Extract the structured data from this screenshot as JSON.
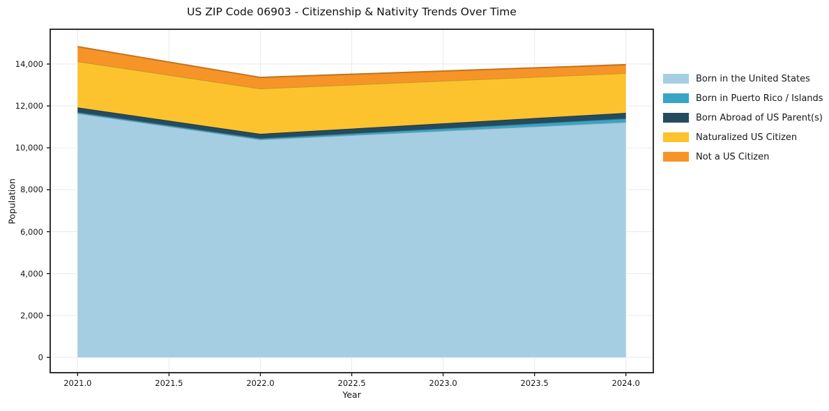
{
  "chart_data": {
    "type": "area",
    "stacked": true,
    "title": "US ZIP Code 06903 - Citizenship & Nativity Trends Over Time",
    "xlabel": "Year",
    "ylabel": "Population",
    "x": [
      2021,
      2022,
      2024
    ],
    "series": [
      {
        "name": "Born in the United States",
        "color": "#a6cee3",
        "values": [
          11650,
          10400,
          11230
        ]
      },
      {
        "name": "Born in Puerto Rico / Islands",
        "color": "#38a5c5",
        "values": [
          50,
          50,
          170
        ]
      },
      {
        "name": "Born Abroad of US Parent(s)",
        "color": "#254b5e",
        "values": [
          230,
          220,
          270
        ]
      },
      {
        "name": "Naturalized US Citizen",
        "color": "#fcc32f",
        "values": [
          2200,
          2160,
          1900
        ]
      },
      {
        "name": "Not a US Citizen",
        "color": "#f79428",
        "values": [
          700,
          530,
          400
        ]
      }
    ],
    "stack_totals": [
      14830,
      13360,
      13970
    ],
    "xlim": [
      2020.85,
      2024.15
    ],
    "ylim": [
      -730,
      15660
    ],
    "grid": true,
    "grid_color": "#e9e9e9",
    "spine_color": "#1a1a1a",
    "legend_position": "right",
    "axes": {
      "x_ticks": [
        {
          "label": "2021.0",
          "value": 2021.0
        },
        {
          "label": "2021.5",
          "value": 2021.5
        },
        {
          "label": "2022.0",
          "value": 2022.0
        },
        {
          "label": "2022.5",
          "value": 2022.5
        },
        {
          "label": "2023.0",
          "value": 2023.0
        },
        {
          "label": "2023.5",
          "value": 2023.5
        },
        {
          "label": "2024.0",
          "value": 2024.0
        }
      ],
      "y_ticks": [
        {
          "label": "0",
          "value": 0
        },
        {
          "label": "2,000",
          "value": 2000
        },
        {
          "label": "4,000",
          "value": 4000
        },
        {
          "label": "6,000",
          "value": 6000
        },
        {
          "label": "8,000",
          "value": 8000
        },
        {
          "label": "10,000",
          "value": 10000
        },
        {
          "label": "12,000",
          "value": 12000
        },
        {
          "label": "14,000",
          "value": 14000
        }
      ]
    }
  }
}
